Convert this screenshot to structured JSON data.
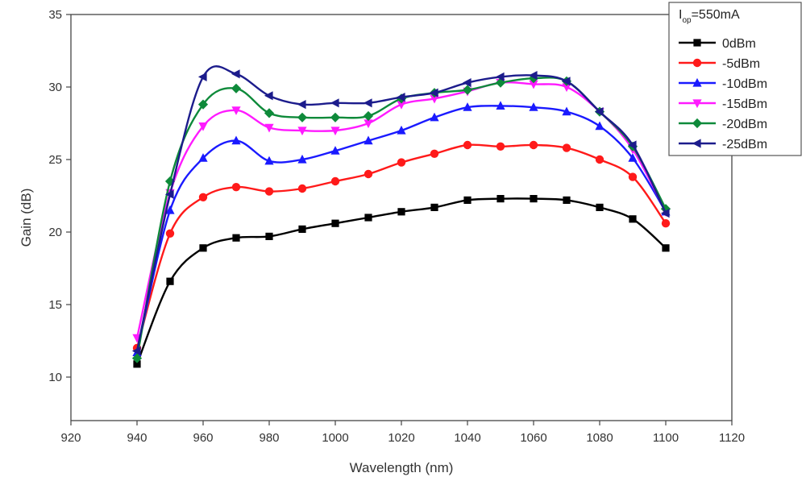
{
  "chart_data": {
    "type": "line",
    "xlabel": "Wavelength (nm)",
    "ylabel": "Gain (dB)",
    "xlim": [
      920,
      1120
    ],
    "ylim": [
      7,
      35
    ],
    "xticks": [
      920,
      940,
      960,
      980,
      1000,
      1020,
      1040,
      1060,
      1080,
      1100,
      1120
    ],
    "yticks": [
      10,
      15,
      20,
      25,
      30,
      35
    ],
    "grid": false,
    "legend_position": "top-right",
    "legend_title": {
      "main": "I",
      "sub": "op",
      "rest": "=550mA"
    },
    "x": [
      940,
      950,
      960,
      970,
      980,
      990,
      1000,
      1010,
      1020,
      1030,
      1040,
      1050,
      1060,
      1070,
      1080,
      1090,
      1100
    ],
    "series": [
      {
        "name": "0dBm",
        "color": "#000000",
        "marker": "square",
        "values": [
          10.9,
          16.6,
          18.9,
          19.6,
          19.7,
          20.2,
          20.6,
          21.0,
          21.4,
          21.7,
          22.2,
          22.3,
          22.3,
          22.2,
          21.7,
          20.9,
          18.9
        ]
      },
      {
        "name": "-5dBm",
        "color": "#ff1a1a",
        "marker": "circle",
        "values": [
          12.0,
          19.9,
          22.4,
          23.1,
          22.8,
          23.0,
          23.5,
          24.0,
          24.8,
          25.4,
          26.0,
          25.9,
          26.0,
          25.8,
          25.0,
          23.8,
          20.6
        ]
      },
      {
        "name": "-10dBm",
        "color": "#1a1aff",
        "marker": "triangle-up",
        "values": [
          11.7,
          21.5,
          25.1,
          26.3,
          24.9,
          25.0,
          25.6,
          26.3,
          27.0,
          27.9,
          28.6,
          28.7,
          28.6,
          28.3,
          27.3,
          25.1,
          21.4
        ]
      },
      {
        "name": "-15dBm",
        "color": "#ff1aff",
        "marker": "triangle-down",
        "values": [
          12.7,
          22.7,
          27.3,
          28.4,
          27.2,
          27.0,
          27.0,
          27.5,
          28.8,
          29.2,
          29.7,
          30.3,
          30.2,
          30.0,
          28.3,
          25.7,
          21.4
        ]
      },
      {
        "name": "-20dBm",
        "color": "#0e8a3a",
        "marker": "diamond",
        "values": [
          11.3,
          23.5,
          28.8,
          29.9,
          28.2,
          27.9,
          27.9,
          28.0,
          29.2,
          29.6,
          29.8,
          30.3,
          30.6,
          30.4,
          28.3,
          25.9,
          21.6
        ]
      },
      {
        "name": "-25dBm",
        "color": "#1c1c8c",
        "marker": "triangle-left",
        "values": [
          11.8,
          22.6,
          30.7,
          30.9,
          29.4,
          28.8,
          28.9,
          28.9,
          29.3,
          29.6,
          30.3,
          30.7,
          30.8,
          30.4,
          28.3,
          26.0,
          21.3
        ]
      }
    ]
  }
}
